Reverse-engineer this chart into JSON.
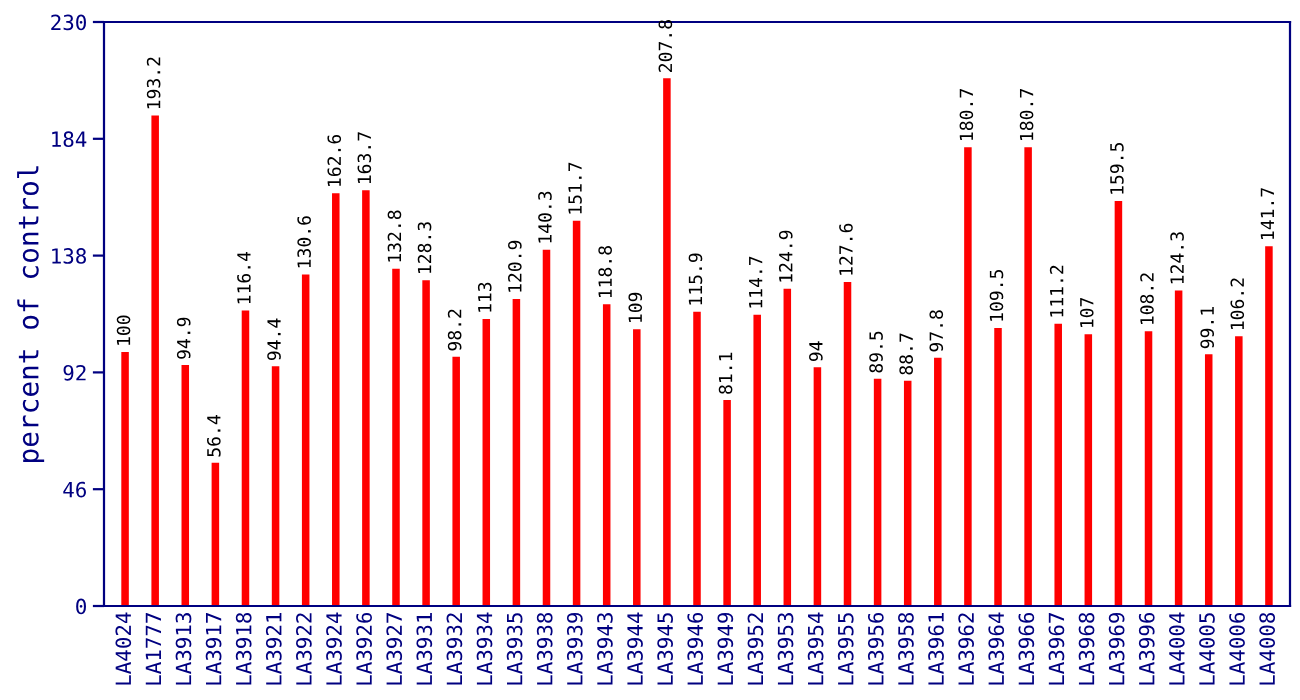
{
  "chart_data": {
    "type": "bar",
    "ylabel": "percent of control",
    "categories": [
      "LA4024",
      "LA1777",
      "LA3913",
      "LA3917",
      "LA3918",
      "LA3921",
      "LA3922",
      "LA3924",
      "LA3926",
      "LA3927",
      "LA3931",
      "LA3932",
      "LA3934",
      "LA3935",
      "LA3938",
      "LA3939",
      "LA3943",
      "LA3944",
      "LA3945",
      "LA3946",
      "LA3949",
      "LA3952",
      "LA3953",
      "LA3954",
      "LA3955",
      "LA3956",
      "LA3958",
      "LA3961",
      "LA3962",
      "LA3964",
      "LA3966",
      "LA3967",
      "LA3968",
      "LA3969",
      "LA3996",
      "LA4004",
      "LA4005",
      "LA4006",
      "LA4008"
    ],
    "values": [
      100,
      193.2,
      94.9,
      56.4,
      116.4,
      94.4,
      130.6,
      162.6,
      163.7,
      132.8,
      128.3,
      98.2,
      113,
      120.9,
      140.3,
      151.7,
      118.8,
      109,
      207.8,
      115.9,
      81.1,
      114.7,
      124.9,
      94,
      127.6,
      89.5,
      88.7,
      97.8,
      180.7,
      109.5,
      180.7,
      111.2,
      107,
      159.5,
      108.2,
      124.3,
      99.1,
      106.2,
      141.7
    ],
    "color": "#ff0000",
    "ylim": [
      0,
      230
    ],
    "yticks": [
      0,
      46,
      92,
      138,
      184,
      230
    ],
    "data_labels": true
  }
}
